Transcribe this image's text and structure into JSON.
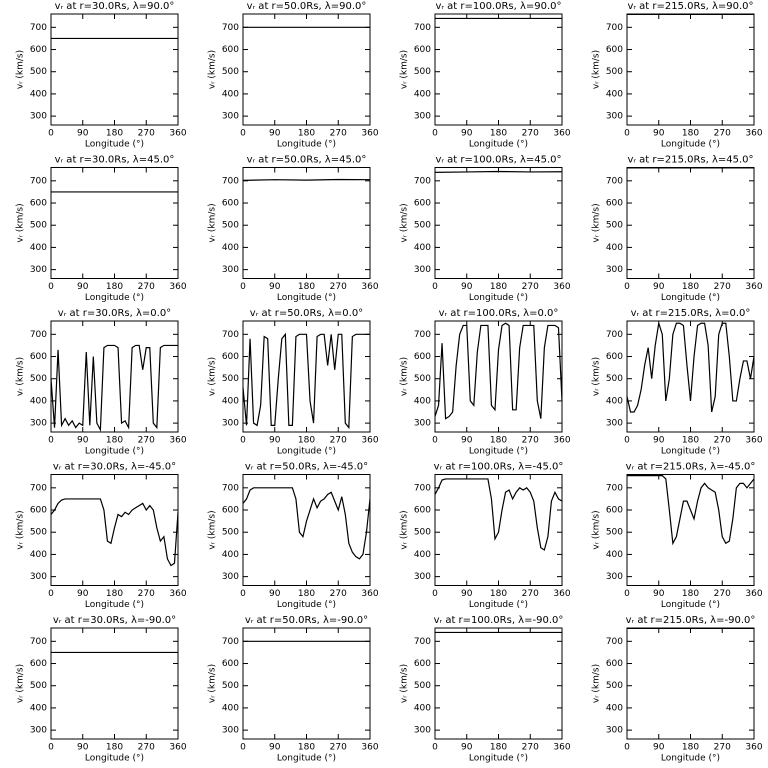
{
  "chart_data": [
    {
      "type": "line",
      "title": "vᵣ at r=30.0Rs, λ=90.0°",
      "xlabel": "Longitude (°)",
      "ylabel": "vᵣ (km/s)",
      "x": [
        0,
        360
      ],
      "values": [
        650,
        650
      ],
      "xlim": [
        0,
        360
      ],
      "ylim": [
        260,
        760
      ],
      "xticks": [
        0,
        90,
        180,
        270,
        360
      ],
      "yticks": [
        300,
        400,
        500,
        600,
        700
      ]
    },
    {
      "type": "line",
      "title": "vᵣ at r=50.0Rs, λ=90.0°",
      "xlabel": "Longitude (°)",
      "ylabel": "vᵣ (km/s)",
      "x": [
        0,
        360
      ],
      "values": [
        700,
        700
      ],
      "xlim": [
        0,
        360
      ],
      "ylim": [
        260,
        760
      ],
      "xticks": [
        0,
        90,
        180,
        270,
        360
      ],
      "yticks": [
        300,
        400,
        500,
        600,
        700
      ]
    },
    {
      "type": "line",
      "title": "vᵣ at r=100.0Rs, λ=90.0°",
      "xlabel": "Longitude (°)",
      "ylabel": "vᵣ (km/s)",
      "x": [
        0,
        360
      ],
      "values": [
        740,
        740
      ],
      "xlim": [
        0,
        360
      ],
      "ylim": [
        260,
        760
      ],
      "xticks": [
        0,
        90,
        180,
        270,
        360
      ],
      "yticks": [
        300,
        400,
        500,
        600,
        700
      ]
    },
    {
      "type": "line",
      "title": "vᵣ at r=215.0Rs, λ=90.0°",
      "xlabel": "Longitude (°)",
      "ylabel": "vᵣ (km/s)",
      "x": [
        0,
        360
      ],
      "values": [
        758,
        758
      ],
      "xlim": [
        0,
        360
      ],
      "ylim": [
        260,
        760
      ],
      "xticks": [
        0,
        90,
        180,
        270,
        360
      ],
      "yticks": [
        300,
        400,
        500,
        600,
        700
      ]
    },
    {
      "type": "line",
      "title": "vᵣ at r=30.0Rs, λ=45.0°",
      "xlabel": "Longitude (°)",
      "ylabel": "vᵣ (km/s)",
      "x": [
        0,
        360
      ],
      "values": [
        650,
        650
      ],
      "xlim": [
        0,
        360
      ],
      "ylim": [
        260,
        760
      ],
      "xticks": [
        0,
        90,
        180,
        270,
        360
      ],
      "yticks": [
        300,
        400,
        500,
        600,
        700
      ]
    },
    {
      "type": "line",
      "title": "vᵣ at r=50.0Rs, λ=45.0°",
      "xlabel": "Longitude (°)",
      "ylabel": "vᵣ (km/s)",
      "x": [
        0,
        90,
        180,
        270,
        360
      ],
      "values": [
        702,
        705,
        703,
        706,
        705
      ],
      "xlim": [
        0,
        360
      ],
      "ylim": [
        260,
        760
      ],
      "xticks": [
        0,
        90,
        180,
        270,
        360
      ],
      "yticks": [
        300,
        400,
        500,
        600,
        700
      ]
    },
    {
      "type": "line",
      "title": "vᵣ at r=100.0Rs, λ=45.0°",
      "xlabel": "Longitude (°)",
      "ylabel": "vᵣ (km/s)",
      "x": [
        0,
        90,
        180,
        270,
        360
      ],
      "values": [
        738,
        740,
        742,
        740,
        741
      ],
      "xlim": [
        0,
        360
      ],
      "ylim": [
        260,
        760
      ],
      "xticks": [
        0,
        90,
        180,
        270,
        360
      ],
      "yticks": [
        300,
        400,
        500,
        600,
        700
      ]
    },
    {
      "type": "line",
      "title": "vᵣ at r=215.0Rs, λ=45.0°",
      "xlabel": "Longitude (°)",
      "ylabel": "vᵣ (km/s)",
      "x": [
        0,
        360
      ],
      "values": [
        758,
        758
      ],
      "xlim": [
        0,
        360
      ],
      "ylim": [
        260,
        760
      ],
      "xticks": [
        0,
        90,
        180,
        270,
        360
      ],
      "yticks": [
        300,
        400,
        500,
        600,
        700
      ]
    },
    {
      "type": "line",
      "title": "vᵣ at r=30.0Rs, λ=0.0°",
      "xlabel": "Longitude (°)",
      "ylabel": "vᵣ (km/s)",
      "x": [
        0,
        10,
        20,
        30,
        40,
        50,
        60,
        70,
        80,
        90,
        100,
        110,
        120,
        130,
        140,
        150,
        160,
        170,
        180,
        190,
        200,
        210,
        220,
        230,
        240,
        250,
        260,
        270,
        280,
        290,
        300,
        310,
        320,
        330,
        340,
        350,
        360
      ],
      "values": [
        500,
        280,
        630,
        290,
        320,
        290,
        310,
        280,
        300,
        290,
        620,
        290,
        600,
        300,
        270,
        640,
        650,
        650,
        650,
        640,
        300,
        310,
        280,
        640,
        650,
        650,
        540,
        640,
        640,
        300,
        280,
        640,
        650,
        650,
        650,
        650,
        650
      ],
      "xlim": [
        0,
        360
      ],
      "ylim": [
        260,
        760
      ],
      "xticks": [
        0,
        90,
        180,
        270,
        360
      ],
      "yticks": [
        300,
        400,
        500,
        600,
        700
      ]
    },
    {
      "type": "line",
      "title": "vᵣ at r=50.0Rs, λ=0.0°",
      "xlabel": "Longitude (°)",
      "ylabel": "vᵣ (km/s)",
      "x": [
        0,
        10,
        20,
        30,
        40,
        50,
        60,
        70,
        80,
        90,
        100,
        110,
        120,
        130,
        140,
        150,
        160,
        170,
        180,
        190,
        200,
        210,
        220,
        230,
        240,
        250,
        260,
        270,
        280,
        290,
        300,
        310,
        320,
        330,
        340,
        350,
        360
      ],
      "values": [
        460,
        290,
        680,
        300,
        290,
        380,
        690,
        680,
        290,
        290,
        500,
        680,
        700,
        290,
        290,
        690,
        700,
        700,
        700,
        400,
        300,
        690,
        700,
        700,
        560,
        700,
        540,
        700,
        700,
        300,
        280,
        690,
        700,
        700,
        700,
        700,
        700
      ],
      "xlim": [
        0,
        360
      ],
      "ylim": [
        260,
        760
      ],
      "xticks": [
        0,
        90,
        180,
        270,
        360
      ],
      "yticks": [
        300,
        400,
        500,
        600,
        700
      ]
    },
    {
      "type": "line",
      "title": "vᵣ at r=100.0Rs, λ=0.0°",
      "xlabel": "Longitude (°)",
      "ylabel": "vᵣ (km/s)",
      "x": [
        0,
        10,
        20,
        30,
        40,
        50,
        60,
        70,
        80,
        90,
        100,
        110,
        120,
        130,
        140,
        150,
        160,
        170,
        180,
        190,
        200,
        210,
        220,
        230,
        240,
        250,
        260,
        270,
        280,
        290,
        300,
        310,
        320,
        330,
        340,
        350,
        360
      ],
      "values": [
        330,
        380,
        660,
        320,
        330,
        350,
        560,
        700,
        740,
        740,
        400,
        380,
        620,
        740,
        740,
        740,
        380,
        360,
        630,
        740,
        750,
        740,
        360,
        360,
        640,
        740,
        740,
        740,
        740,
        400,
        320,
        640,
        740,
        740,
        740,
        730,
        400
      ],
      "xlim": [
        0,
        360
      ],
      "ylim": [
        260,
        760
      ],
      "xticks": [
        0,
        90,
        180,
        270,
        360
      ],
      "yticks": [
        300,
        400,
        500,
        600,
        700
      ]
    },
    {
      "type": "line",
      "title": "vᵣ at r=215.0Rs, λ=0.0°",
      "xlabel": "Longitude (°)",
      "ylabel": "vᵣ (km/s)",
      "x": [
        0,
        10,
        20,
        30,
        40,
        50,
        60,
        70,
        80,
        90,
        100,
        110,
        120,
        130,
        140,
        150,
        160,
        170,
        180,
        190,
        200,
        210,
        220,
        230,
        240,
        250,
        260,
        270,
        280,
        290,
        300,
        310,
        320,
        330,
        340,
        350,
        360
      ],
      "values": [
        420,
        350,
        350,
        380,
        450,
        560,
        640,
        500,
        650,
        750,
        700,
        400,
        500,
        700,
        750,
        750,
        740,
        560,
        400,
        600,
        740,
        750,
        750,
        650,
        350,
        420,
        700,
        750,
        750,
        600,
        400,
        400,
        500,
        580,
        580,
        500,
        600
      ],
      "xlim": [
        0,
        360
      ],
      "ylim": [
        260,
        760
      ],
      "xticks": [
        0,
        90,
        180,
        270,
        360
      ],
      "yticks": [
        300,
        400,
        500,
        600,
        700
      ]
    },
    {
      "type": "line",
      "title": "vᵣ at r=30.0Rs, λ=-45.0°",
      "xlabel": "Longitude (°)",
      "ylabel": "vᵣ (km/s)",
      "x": [
        0,
        10,
        20,
        30,
        40,
        50,
        60,
        70,
        80,
        90,
        100,
        110,
        120,
        130,
        140,
        150,
        160,
        170,
        180,
        190,
        200,
        210,
        220,
        230,
        240,
        250,
        260,
        270,
        280,
        290,
        300,
        310,
        320,
        330,
        340,
        350,
        360
      ],
      "values": [
        580,
        600,
        630,
        645,
        650,
        650,
        650,
        650,
        650,
        650,
        650,
        650,
        650,
        650,
        650,
        600,
        460,
        450,
        520,
        580,
        570,
        590,
        580,
        600,
        610,
        620,
        630,
        600,
        620,
        600,
        520,
        460,
        480,
        380,
        350,
        360,
        590
      ],
      "xlim": [
        0,
        360
      ],
      "ylim": [
        260,
        760
      ],
      "xticks": [
        0,
        90,
        180,
        270,
        360
      ],
      "yticks": [
        300,
        400,
        500,
        600,
        700
      ]
    },
    {
      "type": "line",
      "title": "vᵣ at r=50.0Rs, λ=-45.0°",
      "xlabel": "Longitude (°)",
      "ylabel": "vᵣ (km/s)",
      "x": [
        0,
        10,
        20,
        30,
        40,
        50,
        60,
        70,
        80,
        90,
        100,
        110,
        120,
        130,
        140,
        150,
        160,
        170,
        180,
        190,
        200,
        210,
        220,
        230,
        240,
        250,
        260,
        270,
        280,
        290,
        300,
        310,
        320,
        330,
        340,
        350,
        360
      ],
      "values": [
        630,
        650,
        690,
        700,
        700,
        700,
        700,
        700,
        700,
        700,
        700,
        700,
        700,
        700,
        700,
        650,
        500,
        480,
        550,
        600,
        650,
        610,
        640,
        650,
        670,
        680,
        640,
        600,
        660,
        580,
        450,
        410,
        390,
        380,
        400,
        500,
        650
      ],
      "xlim": [
        0,
        360
      ],
      "ylim": [
        260,
        760
      ],
      "xticks": [
        0,
        90,
        180,
        270,
        360
      ],
      "yticks": [
        300,
        400,
        500,
        600,
        700
      ]
    },
    {
      "type": "line",
      "title": "vᵣ at r=100.0Rs, λ=-45.0°",
      "xlabel": "Longitude (°)",
      "ylabel": "vᵣ (km/s)",
      "x": [
        0,
        10,
        20,
        30,
        40,
        50,
        60,
        70,
        80,
        90,
        100,
        110,
        120,
        130,
        140,
        150,
        160,
        170,
        180,
        190,
        200,
        210,
        220,
        230,
        240,
        250,
        260,
        270,
        280,
        290,
        300,
        310,
        320,
        330,
        340,
        350,
        360
      ],
      "values": [
        670,
        700,
        735,
        740,
        740,
        740,
        740,
        740,
        740,
        740,
        740,
        740,
        740,
        740,
        740,
        740,
        650,
        470,
        500,
        600,
        680,
        690,
        650,
        680,
        700,
        690,
        700,
        680,
        640,
        520,
        430,
        420,
        480,
        640,
        680,
        650,
        640
      ],
      "xlim": [
        0,
        360
      ],
      "ylim": [
        260,
        760
      ],
      "xticks": [
        0,
        90,
        180,
        270,
        360
      ],
      "yticks": [
        300,
        400,
        500,
        600,
        700
      ]
    },
    {
      "type": "line",
      "title": "vᵣ at r=215.0Rs, λ=-45.0°",
      "xlabel": "Longitude (°)",
      "ylabel": "vᵣ (km/s)",
      "x": [
        0,
        10,
        20,
        30,
        40,
        50,
        60,
        70,
        80,
        90,
        100,
        110,
        120,
        130,
        140,
        150,
        160,
        170,
        180,
        190,
        200,
        210,
        220,
        230,
        240,
        250,
        260,
        270,
        280,
        290,
        300,
        310,
        320,
        330,
        340,
        350,
        360
      ],
      "values": [
        755,
        755,
        755,
        755,
        755,
        755,
        755,
        755,
        755,
        755,
        755,
        740,
        600,
        450,
        480,
        560,
        640,
        640,
        600,
        560,
        640,
        700,
        720,
        700,
        690,
        680,
        600,
        480,
        450,
        460,
        560,
        700,
        720,
        720,
        700,
        720,
        740
      ],
      "xlim": [
        0,
        360
      ],
      "ylim": [
        260,
        760
      ],
      "xticks": [
        0,
        90,
        180,
        270,
        360
      ],
      "yticks": [
        300,
        400,
        500,
        600,
        700
      ]
    },
    {
      "type": "line",
      "title": "vᵣ at r=30.0Rs, λ=-90.0°",
      "xlabel": "Longitude (°)",
      "ylabel": "vᵣ (km/s)",
      "x": [
        0,
        360
      ],
      "values": [
        650,
        650
      ],
      "xlim": [
        0,
        360
      ],
      "ylim": [
        260,
        760
      ],
      "xticks": [
        0,
        90,
        180,
        270,
        360
      ],
      "yticks": [
        300,
        400,
        500,
        600,
        700
      ]
    },
    {
      "type": "line",
      "title": "vᵣ at r=50.0Rs, λ=-90.0°",
      "xlabel": "Longitude (°)",
      "ylabel": "vᵣ (km/s)",
      "x": [
        0,
        360
      ],
      "values": [
        700,
        700
      ],
      "xlim": [
        0,
        360
      ],
      "ylim": [
        260,
        760
      ],
      "xticks": [
        0,
        90,
        180,
        270,
        360
      ],
      "yticks": [
        300,
        400,
        500,
        600,
        700
      ]
    },
    {
      "type": "line",
      "title": "vᵣ at r=100.0Rs, λ=-90.0°",
      "xlabel": "Longitude (°)",
      "ylabel": "vᵣ (km/s)",
      "x": [
        0,
        360
      ],
      "values": [
        740,
        740
      ],
      "xlim": [
        0,
        360
      ],
      "ylim": [
        260,
        760
      ],
      "xticks": [
        0,
        90,
        180,
        270,
        360
      ],
      "yticks": [
        300,
        400,
        500,
        600,
        700
      ]
    },
    {
      "type": "line",
      "title": "vᵣ at r=215.0Rs, λ=-90.0°",
      "xlabel": "Longitude (°)",
      "ylabel": "vᵣ (km/s)",
      "x": [
        0,
        360
      ],
      "values": [
        758,
        758
      ],
      "xlim": [
        0,
        360
      ],
      "ylim": [
        260,
        760
      ],
      "xticks": [
        0,
        90,
        180,
        270,
        360
      ],
      "yticks": [
        300,
        400,
        500,
        600,
        700
      ]
    }
  ]
}
